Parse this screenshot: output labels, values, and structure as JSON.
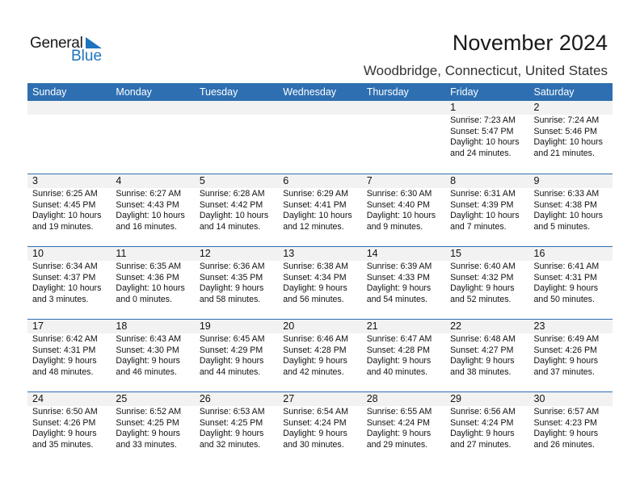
{
  "logo": {
    "text_general": "General",
    "text_blue": "Blue",
    "triangle_color": "#1e73be"
  },
  "title": "November 2024",
  "subtitle": "Woodbridge, Connecticut, United States",
  "colors": {
    "header_bg": "#2e6fb1",
    "band_bg": "#f2f2f2"
  },
  "weekdays": [
    "Sunday",
    "Monday",
    "Tuesday",
    "Wednesday",
    "Thursday",
    "Friday",
    "Saturday"
  ],
  "weeks": [
    [
      null,
      null,
      null,
      null,
      null,
      {
        "day": "1",
        "sunrise": "Sunrise: 7:23 AM",
        "sunset": "Sunset: 5:47 PM",
        "daylight1": "Daylight: 10 hours",
        "daylight2": "and 24 minutes."
      },
      {
        "day": "2",
        "sunrise": "Sunrise: 7:24 AM",
        "sunset": "Sunset: 5:46 PM",
        "daylight1": "Daylight: 10 hours",
        "daylight2": "and 21 minutes."
      }
    ],
    [
      {
        "day": "3",
        "sunrise": "Sunrise: 6:25 AM",
        "sunset": "Sunset: 4:45 PM",
        "daylight1": "Daylight: 10 hours",
        "daylight2": "and 19 minutes."
      },
      {
        "day": "4",
        "sunrise": "Sunrise: 6:27 AM",
        "sunset": "Sunset: 4:43 PM",
        "daylight1": "Daylight: 10 hours",
        "daylight2": "and 16 minutes."
      },
      {
        "day": "5",
        "sunrise": "Sunrise: 6:28 AM",
        "sunset": "Sunset: 4:42 PM",
        "daylight1": "Daylight: 10 hours",
        "daylight2": "and 14 minutes."
      },
      {
        "day": "6",
        "sunrise": "Sunrise: 6:29 AM",
        "sunset": "Sunset: 4:41 PM",
        "daylight1": "Daylight: 10 hours",
        "daylight2": "and 12 minutes."
      },
      {
        "day": "7",
        "sunrise": "Sunrise: 6:30 AM",
        "sunset": "Sunset: 4:40 PM",
        "daylight1": "Daylight: 10 hours",
        "daylight2": "and 9 minutes."
      },
      {
        "day": "8",
        "sunrise": "Sunrise: 6:31 AM",
        "sunset": "Sunset: 4:39 PM",
        "daylight1": "Daylight: 10 hours",
        "daylight2": "and 7 minutes."
      },
      {
        "day": "9",
        "sunrise": "Sunrise: 6:33 AM",
        "sunset": "Sunset: 4:38 PM",
        "daylight1": "Daylight: 10 hours",
        "daylight2": "and 5 minutes."
      }
    ],
    [
      {
        "day": "10",
        "sunrise": "Sunrise: 6:34 AM",
        "sunset": "Sunset: 4:37 PM",
        "daylight1": "Daylight: 10 hours",
        "daylight2": "and 3 minutes."
      },
      {
        "day": "11",
        "sunrise": "Sunrise: 6:35 AM",
        "sunset": "Sunset: 4:36 PM",
        "daylight1": "Daylight: 10 hours",
        "daylight2": "and 0 minutes."
      },
      {
        "day": "12",
        "sunrise": "Sunrise: 6:36 AM",
        "sunset": "Sunset: 4:35 PM",
        "daylight1": "Daylight: 9 hours",
        "daylight2": "and 58 minutes."
      },
      {
        "day": "13",
        "sunrise": "Sunrise: 6:38 AM",
        "sunset": "Sunset: 4:34 PM",
        "daylight1": "Daylight: 9 hours",
        "daylight2": "and 56 minutes."
      },
      {
        "day": "14",
        "sunrise": "Sunrise: 6:39 AM",
        "sunset": "Sunset: 4:33 PM",
        "daylight1": "Daylight: 9 hours",
        "daylight2": "and 54 minutes."
      },
      {
        "day": "15",
        "sunrise": "Sunrise: 6:40 AM",
        "sunset": "Sunset: 4:32 PM",
        "daylight1": "Daylight: 9 hours",
        "daylight2": "and 52 minutes."
      },
      {
        "day": "16",
        "sunrise": "Sunrise: 6:41 AM",
        "sunset": "Sunset: 4:31 PM",
        "daylight1": "Daylight: 9 hours",
        "daylight2": "and 50 minutes."
      }
    ],
    [
      {
        "day": "17",
        "sunrise": "Sunrise: 6:42 AM",
        "sunset": "Sunset: 4:31 PM",
        "daylight1": "Daylight: 9 hours",
        "daylight2": "and 48 minutes."
      },
      {
        "day": "18",
        "sunrise": "Sunrise: 6:43 AM",
        "sunset": "Sunset: 4:30 PM",
        "daylight1": "Daylight: 9 hours",
        "daylight2": "and 46 minutes."
      },
      {
        "day": "19",
        "sunrise": "Sunrise: 6:45 AM",
        "sunset": "Sunset: 4:29 PM",
        "daylight1": "Daylight: 9 hours",
        "daylight2": "and 44 minutes."
      },
      {
        "day": "20",
        "sunrise": "Sunrise: 6:46 AM",
        "sunset": "Sunset: 4:28 PM",
        "daylight1": "Daylight: 9 hours",
        "daylight2": "and 42 minutes."
      },
      {
        "day": "21",
        "sunrise": "Sunrise: 6:47 AM",
        "sunset": "Sunset: 4:28 PM",
        "daylight1": "Daylight: 9 hours",
        "daylight2": "and 40 minutes."
      },
      {
        "day": "22",
        "sunrise": "Sunrise: 6:48 AM",
        "sunset": "Sunset: 4:27 PM",
        "daylight1": "Daylight: 9 hours",
        "daylight2": "and 38 minutes."
      },
      {
        "day": "23",
        "sunrise": "Sunrise: 6:49 AM",
        "sunset": "Sunset: 4:26 PM",
        "daylight1": "Daylight: 9 hours",
        "daylight2": "and 37 minutes."
      }
    ],
    [
      {
        "day": "24",
        "sunrise": "Sunrise: 6:50 AM",
        "sunset": "Sunset: 4:26 PM",
        "daylight1": "Daylight: 9 hours",
        "daylight2": "and 35 minutes."
      },
      {
        "day": "25",
        "sunrise": "Sunrise: 6:52 AM",
        "sunset": "Sunset: 4:25 PM",
        "daylight1": "Daylight: 9 hours",
        "daylight2": "and 33 minutes."
      },
      {
        "day": "26",
        "sunrise": "Sunrise: 6:53 AM",
        "sunset": "Sunset: 4:25 PM",
        "daylight1": "Daylight: 9 hours",
        "daylight2": "and 32 minutes."
      },
      {
        "day": "27",
        "sunrise": "Sunrise: 6:54 AM",
        "sunset": "Sunset: 4:24 PM",
        "daylight1": "Daylight: 9 hours",
        "daylight2": "and 30 minutes."
      },
      {
        "day": "28",
        "sunrise": "Sunrise: 6:55 AM",
        "sunset": "Sunset: 4:24 PM",
        "daylight1": "Daylight: 9 hours",
        "daylight2": "and 29 minutes."
      },
      {
        "day": "29",
        "sunrise": "Sunrise: 6:56 AM",
        "sunset": "Sunset: 4:24 PM",
        "daylight1": "Daylight: 9 hours",
        "daylight2": "and 27 minutes."
      },
      {
        "day": "30",
        "sunrise": "Sunrise: 6:57 AM",
        "sunset": "Sunset: 4:23 PM",
        "daylight1": "Daylight: 9 hours",
        "daylight2": "and 26 minutes."
      }
    ]
  ]
}
